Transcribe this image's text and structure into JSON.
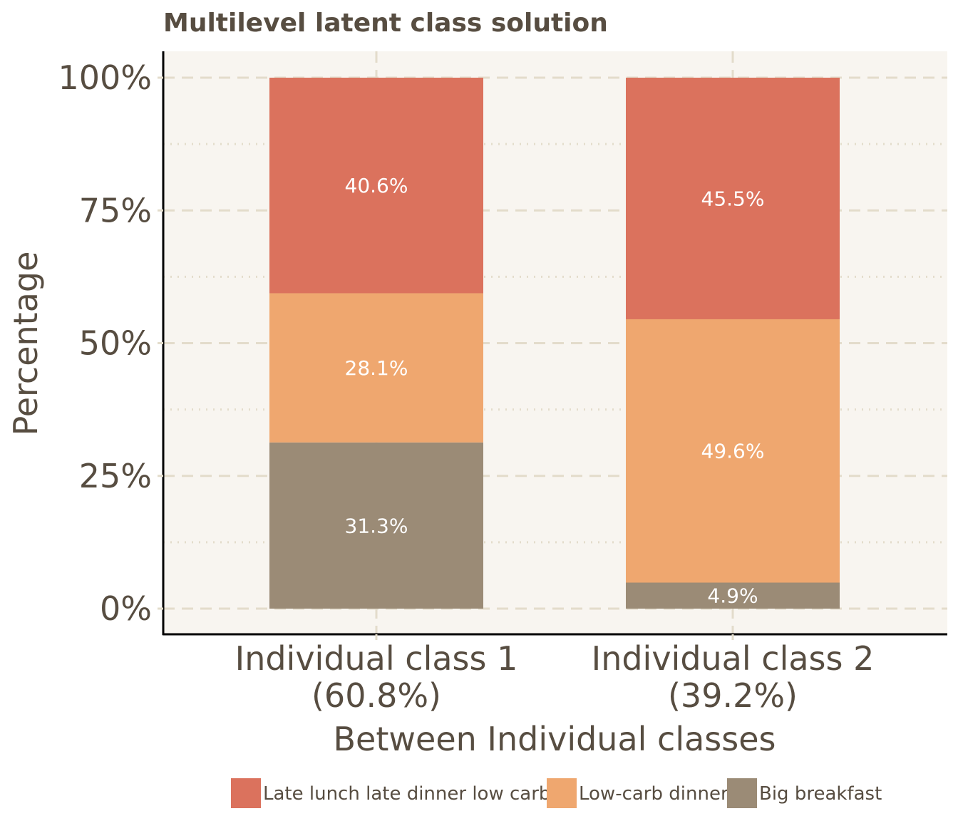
{
  "chart_data": {
    "type": "bar",
    "stacked": true,
    "title": "Multilevel latent class solution",
    "xlabel": "Between Individual classes",
    "ylabel": "Percentage",
    "categories": [
      [
        "Individual class 1",
        "(60.8%)"
      ],
      [
        "Individual class 2",
        "(39.2%)"
      ]
    ],
    "y_ticks": [
      "0%",
      "25%",
      "50%",
      "75%",
      "100%"
    ],
    "ylim": [
      0,
      100
    ],
    "grid": true,
    "legend_position": "bottom",
    "series": [
      {
        "name": "Big breakfast",
        "color": "#9b8b76",
        "values": [
          31.3,
          4.9
        ],
        "labels": [
          "31.3%",
          "4.9%"
        ]
      },
      {
        "name": "Low-carb dinner",
        "color": "#efa76f",
        "values": [
          28.1,
          49.6
        ],
        "labels": [
          "28.1%",
          "49.6%"
        ]
      },
      {
        "name": "Late lunch late dinner low carb",
        "color": "#db725d",
        "values": [
          40.6,
          45.5
        ],
        "labels": [
          "40.6%",
          "45.5%"
        ]
      }
    ],
    "legend_order": [
      "Late lunch late dinner low carb",
      "Low-carb dinner",
      "Big breakfast"
    ],
    "colors": {
      "panel_background": "#f8f5f0",
      "grid": "#e3dccb",
      "text": "#574d41",
      "axis": "#000000"
    }
  }
}
